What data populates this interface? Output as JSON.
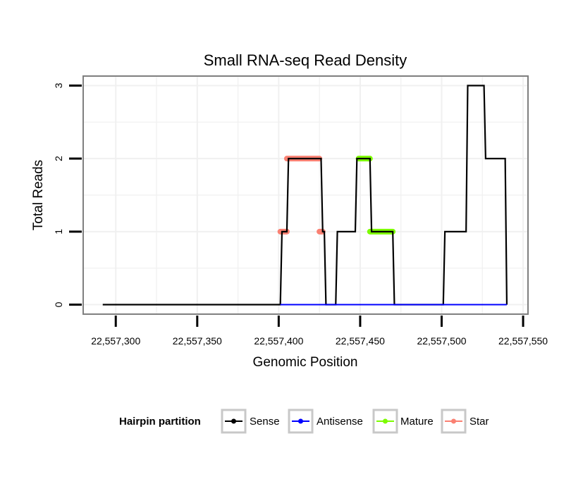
{
  "chart_data": {
    "type": "line",
    "title": "Small RNA-seq Read Density",
    "xlabel": "Genomic Position",
    "ylabel": "Total Reads",
    "xlim": [
      22557280,
      22557553
    ],
    "ylim": [
      -0.13,
      3.13
    ],
    "xticks": [
      22557300,
      22557350,
      22557400,
      22557450,
      22557500,
      22557550
    ],
    "xtick_labels": [
      "22,557,300",
      "22,557,350",
      "22,557,400",
      "22,557,450",
      "22,557,500",
      "22,557,550"
    ],
    "yticks": [
      0,
      1,
      2,
      3
    ],
    "ytick_labels": [
      "0",
      "1",
      "2",
      "3"
    ],
    "grid": true,
    "legend": {
      "title": "Hairpin partition",
      "position": "bottom",
      "entries": [
        {
          "name": "Sense",
          "color": "#000000"
        },
        {
          "name": "Antisense",
          "color": "#0000ff"
        },
        {
          "name": "Mature",
          "color": "#7cfc00"
        },
        {
          "name": "Star",
          "color": "#fa8072"
        }
      ]
    },
    "series": [
      {
        "name": "Sense",
        "color": "#000000",
        "style": "step-line",
        "x": [
          22557292,
          22557401,
          22557402,
          22557405,
          22557406,
          22557426,
          22557427,
          22557428,
          22557429,
          22557435,
          22557436,
          22557447,
          22557448,
          22557456,
          22557457,
          22557470,
          22557471,
          22557501,
          22557502,
          22557515,
          22557516,
          22557526,
          22557527,
          22557539,
          22557540
        ],
        "y": [
          0,
          0,
          1,
          1,
          2,
          2,
          1,
          1,
          0,
          0,
          1,
          1,
          2,
          2,
          1,
          1,
          0,
          0,
          1,
          1,
          3,
          3,
          2,
          2,
          0
        ]
      },
      {
        "name": "Antisense",
        "color": "#0000ff",
        "style": "line",
        "x": [
          22557401,
          22557540
        ],
        "y": [
          0,
          0
        ]
      },
      {
        "name": "Mature",
        "color": "#7cfc00",
        "style": "thick-segments",
        "segments": [
          {
            "x": [
              22557449,
              22557456
            ],
            "y": 2
          },
          {
            "x": [
              22557456,
              22557470
            ],
            "y": 1
          }
        ]
      },
      {
        "name": "Star",
        "color": "#fa8072",
        "style": "thick-segments",
        "segments": [
          {
            "x": [
              22557401,
              22557405
            ],
            "y": 1
          },
          {
            "x": [
              22557405,
              22557425
            ],
            "y": 2
          },
          {
            "x": [
              22557425,
              22557427
            ],
            "y": 1
          }
        ]
      }
    ]
  }
}
